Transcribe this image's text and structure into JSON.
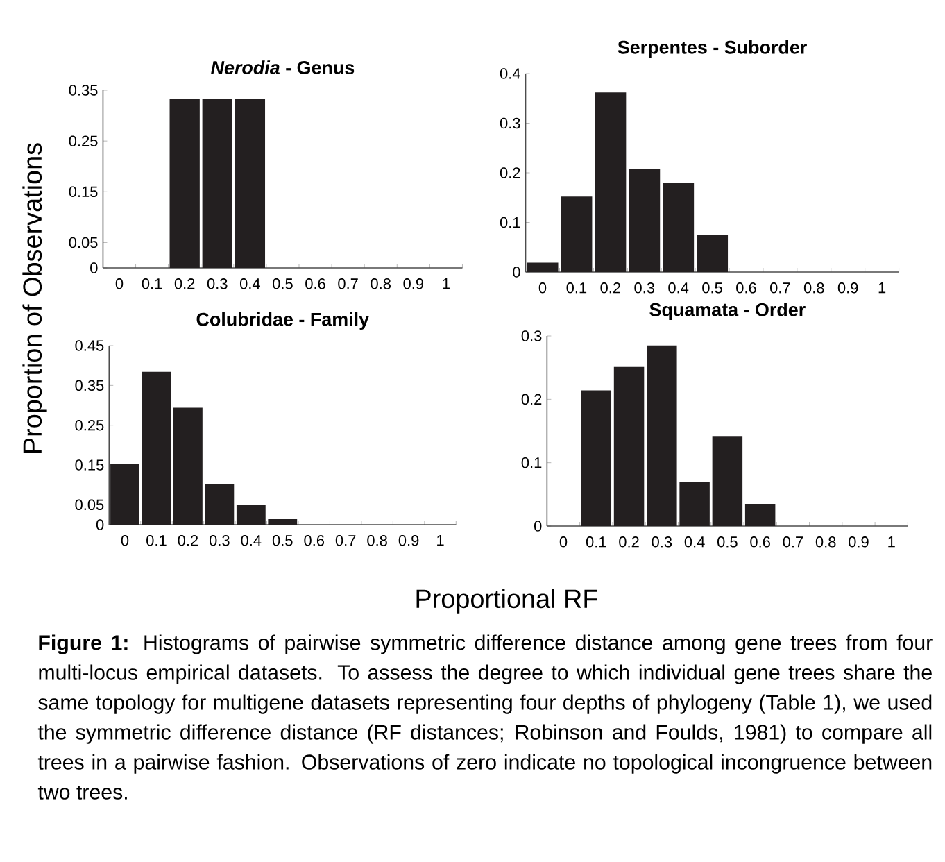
{
  "chart_data": [
    {
      "type": "bar",
      "title": "*Nerodia* - Genus",
      "ylabel": "Proportion of Observations",
      "categories": [
        "0",
        "0.1",
        "0.2",
        "0.3",
        "0.4",
        "0.5",
        "0.6",
        "0.7",
        "0.8",
        "0.9",
        "1"
      ],
      "values": [
        0,
        0,
        0.333,
        0.333,
        0.333,
        0,
        0,
        0,
        0,
        0,
        0
      ],
      "color": "#231f20",
      "ylim": [
        0,
        0.35
      ],
      "yticks": [
        0,
        0.05,
        0.15,
        0.25,
        0.35
      ]
    },
    {
      "type": "bar",
      "title": "Serpentes - Suborder",
      "categories": [
        "0",
        "0.1",
        "0.2",
        "0.3",
        "0.4",
        "0.5",
        "0.6",
        "0.7",
        "0.8",
        "0.9",
        "1"
      ],
      "values": [
        0.019,
        0.152,
        0.362,
        0.208,
        0.18,
        0.075,
        0,
        0,
        0,
        0,
        0
      ],
      "color": "#231f20",
      "ylim": [
        0,
        0.4
      ],
      "yticks": [
        0,
        0.1,
        0.2,
        0.3,
        0.4
      ]
    },
    {
      "type": "bar",
      "title": "Colubridae - Family",
      "categories": [
        "0",
        "0.1",
        "0.2",
        "0.3",
        "0.4",
        "0.5",
        "0.6",
        "0.7",
        "0.8",
        "0.9",
        "1"
      ],
      "values": [
        0.153,
        0.384,
        0.294,
        0.102,
        0.05,
        0.014,
        0,
        0,
        0,
        0,
        0
      ],
      "color": "#231f20",
      "ylim": [
        0,
        0.45
      ],
      "yticks": [
        0,
        0.05,
        0.15,
        0.25,
        0.35,
        0.45
      ]
    },
    {
      "type": "bar",
      "title": "Squamata - Order",
      "xlabel": "Proportional RF",
      "categories": [
        "0",
        "0.1",
        "0.2",
        "0.3",
        "0.4",
        "0.5",
        "0.6",
        "0.7",
        "0.8",
        "0.9",
        "1"
      ],
      "values": [
        0,
        0.214,
        0.251,
        0.285,
        0.07,
        0.142,
        0.035,
        0,
        0,
        0,
        0
      ],
      "color": "#231f20",
      "ylim": [
        0,
        0.3
      ],
      "yticks": [
        0,
        0.1,
        0.2,
        0.3
      ],
      "annotations": [
        "**Figure 1:**  Histograms of pairwise symmetric difference distance among gene trees from four multi-locus empirical datasets. To assess the degree to which individual gene trees share the same topology for multigene datasets representing four depths of phylogeny (Table 1), we used the symmetric difference distance (RF distances; Robinson and Foulds, 1981) to compare all trees in a pairwise fashion. Observations of zero indicate no topological incongruence between two trees."
      ]
    }
  ]
}
